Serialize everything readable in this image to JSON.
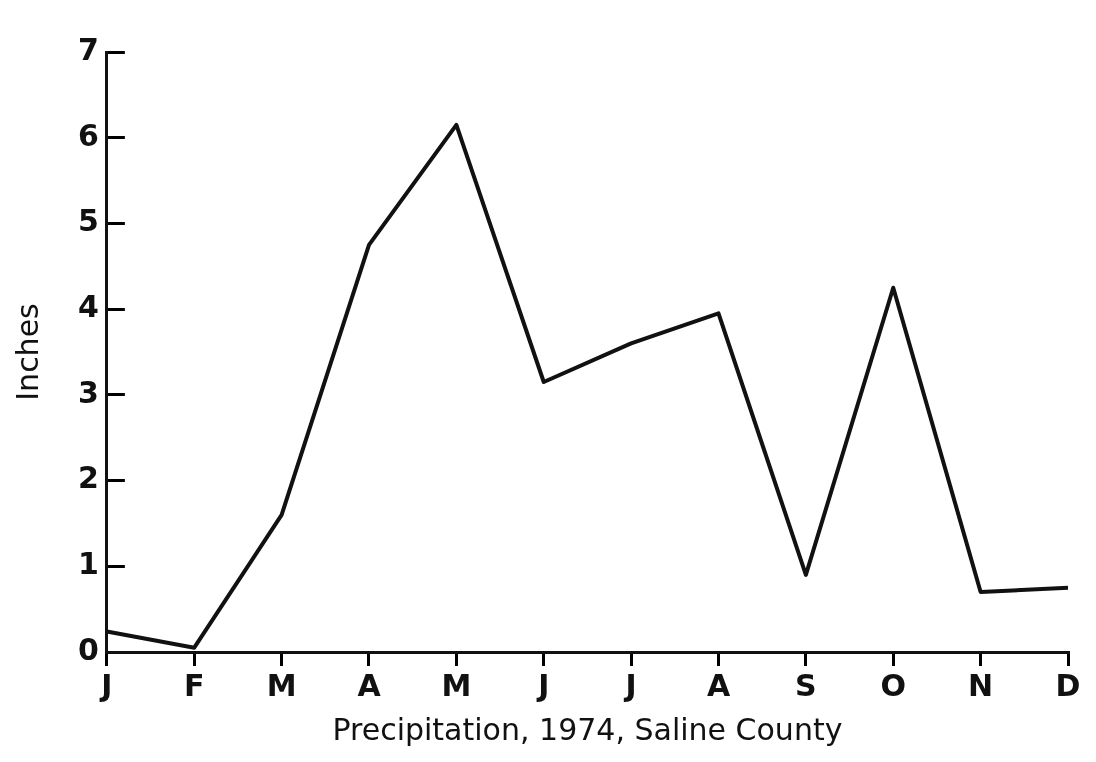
{
  "chart_data": {
    "type": "line",
    "xlabel": "Precipitation, 1974, Saline County",
    "ylabel": "Inches",
    "categories": [
      "J",
      "F",
      "M",
      "A",
      "M",
      "J",
      "J",
      "A",
      "S",
      "O",
      "N",
      "D"
    ],
    "values": [
      0.24,
      0.05,
      1.6,
      4.75,
      6.15,
      3.15,
      3.6,
      3.95,
      0.9,
      4.25,
      0.7,
      0.75
    ],
    "color": "#111111",
    "ylim": [
      0,
      7
    ],
    "yticks": [
      0,
      1,
      2,
      3,
      4,
      5,
      6,
      7
    ],
    "grid": false,
    "marker": "none",
    "line_style": "solid"
  }
}
